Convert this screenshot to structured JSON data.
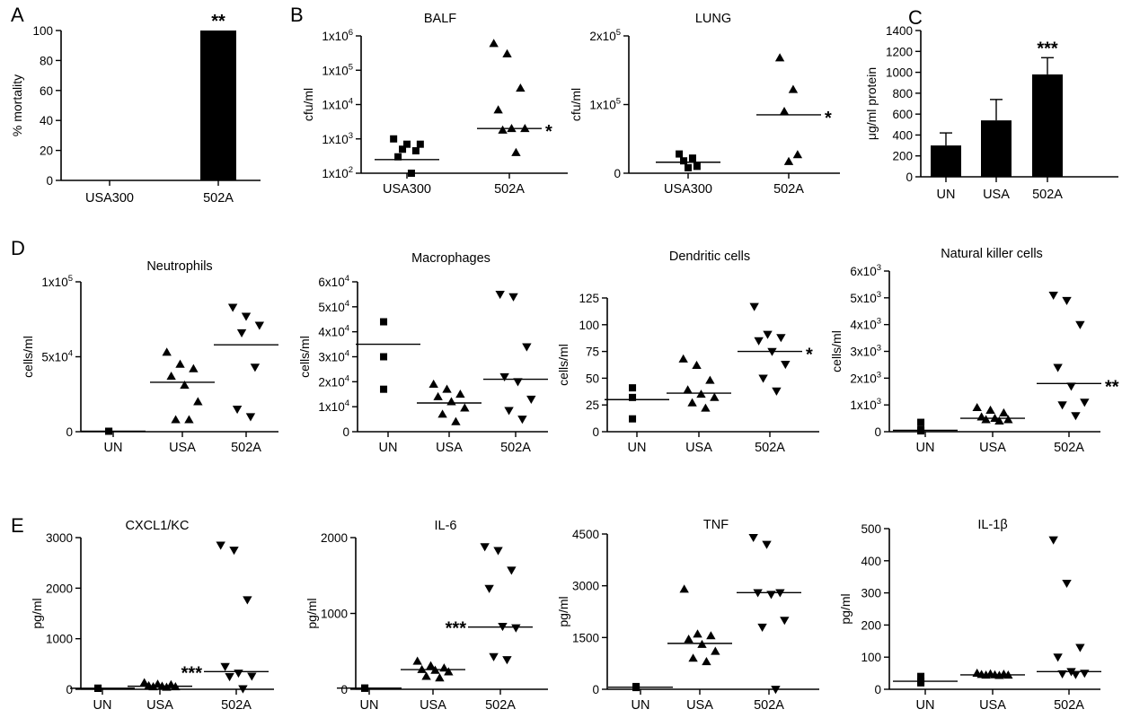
{
  "figure": {
    "panel_letters": [
      "A",
      "B",
      "C",
      "D",
      "E"
    ]
  },
  "chart_data": [
    {
      "id": "A",
      "panel_letter": "A",
      "type": "bar",
      "title": "",
      "ylabel": "% mortality",
      "ylim": [
        0,
        100
      ],
      "yticks": [
        0,
        20,
        40,
        60,
        80,
        100
      ],
      "categories": [
        "USA300",
        "502A"
      ],
      "values": [
        0,
        100
      ],
      "annotations": [
        {
          "category": "502A",
          "text": "**"
        }
      ]
    },
    {
      "id": "B1",
      "panel_letter": "B",
      "type": "scatter",
      "title": "BALF",
      "ylabel": "cfu/ml",
      "yscale": "log",
      "ylim": [
        100,
        1000000
      ],
      "yticks": [
        {
          "v": 100,
          "b": "1x10",
          "e": "2"
        },
        {
          "v": 1000,
          "b": "1x10",
          "e": "3"
        },
        {
          "v": 10000,
          "b": "1x10",
          "e": "4"
        },
        {
          "v": 100000,
          "b": "1x10",
          "e": "5"
        },
        {
          "v": 1000000,
          "b": "1x10",
          "e": "6"
        }
      ],
      "categories": [
        "USA300",
        "502A"
      ],
      "series": [
        {
          "category": "USA300",
          "marker": "square",
          "points": [
            1000,
            700,
            700,
            500,
            450,
            300,
            100
          ],
          "median": 250
        },
        {
          "category": "502A",
          "marker": "triangle-up",
          "points": [
            600000,
            300000,
            30000,
            7000,
            2000,
            2000,
            1800,
            400
          ],
          "median": 2000
        }
      ],
      "annotations": [
        {
          "category": "502A",
          "text": "*"
        }
      ]
    },
    {
      "id": "B2",
      "panel_letter": "",
      "type": "scatter",
      "title": "LUNG",
      "ylabel": "cfu/ml",
      "yscale": "linear",
      "ylim": [
        0,
        200000
      ],
      "yticks": [
        {
          "v": 0,
          "t": "0"
        },
        {
          "v": 100000,
          "b": "1x10",
          "e": "5"
        },
        {
          "v": 200000,
          "b": "2x10",
          "e": "5"
        }
      ],
      "categories": [
        "USA300",
        "502A"
      ],
      "series": [
        {
          "category": "USA300",
          "marker": "square",
          "points": [
            28000,
            22000,
            18000,
            10000,
            8000
          ],
          "median": 16000
        },
        {
          "category": "502A",
          "marker": "triangle-up",
          "points": [
            168000,
            122000,
            90000,
            27000,
            17000
          ],
          "median": 85000
        }
      ],
      "annotations": [
        {
          "category": "502A",
          "text": "*"
        }
      ]
    },
    {
      "id": "C",
      "panel_letter": "C",
      "type": "bar",
      "title": "",
      "ylabel": "μg/ml protein",
      "ylim": [
        0,
        1400
      ],
      "yticks": [
        0,
        200,
        400,
        600,
        800,
        1000,
        1200,
        1400
      ],
      "categories": [
        "UN",
        "USA",
        "502A"
      ],
      "values": [
        300,
        540,
        980
      ],
      "errors": [
        120,
        200,
        160
      ],
      "annotations": [
        {
          "category": "502A",
          "text": "***"
        }
      ]
    },
    {
      "id": "D1",
      "panel_letter": "D",
      "type": "scatter",
      "title": "Neutrophils",
      "ylabel": "cells/ml",
      "yscale": "linear",
      "ylim": [
        0,
        100000
      ],
      "yticks": [
        {
          "v": 0,
          "t": "0"
        },
        {
          "v": 50000,
          "b": "5x10",
          "e": "4"
        },
        {
          "v": 100000,
          "b": "1x10",
          "e": "5"
        }
      ],
      "categories": [
        "UN",
        "USA",
        "502A"
      ],
      "series": [
        {
          "category": "UN",
          "marker": "square",
          "points": [
            300,
            300,
            300
          ],
          "median": 300
        },
        {
          "category": "USA",
          "marker": "triangle-up",
          "points": [
            53000,
            45000,
            42000,
            37000,
            31000,
            20000,
            8000,
            8000
          ],
          "median": 33000
        },
        {
          "category": "502A",
          "marker": "triangle-down",
          "points": [
            83000,
            77000,
            71000,
            66000,
            43000,
            15000,
            10000
          ],
          "median": 58000
        }
      ],
      "annotations": []
    },
    {
      "id": "D2",
      "panel_letter": "",
      "type": "scatter",
      "title": "Macrophages",
      "ylabel": "cells/ml",
      "yscale": "linear",
      "ylim": [
        0,
        60000
      ],
      "yticks": [
        {
          "v": 0,
          "t": "0"
        },
        {
          "v": 10000,
          "b": "1x10",
          "e": "4"
        },
        {
          "v": 20000,
          "b": "2x10",
          "e": "4"
        },
        {
          "v": 30000,
          "b": "3x10",
          "e": "4"
        },
        {
          "v": 40000,
          "b": "4x10",
          "e": "4"
        },
        {
          "v": 50000,
          "b": "5x10",
          "e": "4"
        },
        {
          "v": 60000,
          "b": "6x10",
          "e": "4"
        }
      ],
      "categories": [
        "UN",
        "USA",
        "502A"
      ],
      "series": [
        {
          "category": "UN",
          "marker": "square",
          "points": [
            44000,
            30000,
            17000
          ],
          "median": 35000
        },
        {
          "category": "USA",
          "marker": "triangle-up",
          "points": [
            19000,
            17000,
            15000,
            14000,
            12000,
            9500,
            7000,
            4000
          ],
          "median": 11500
        },
        {
          "category": "502A",
          "marker": "triangle-down",
          "points": [
            55000,
            54000,
            34000,
            22000,
            20000,
            13000,
            8500,
            5000
          ],
          "median": 21000
        }
      ],
      "annotations": []
    },
    {
      "id": "D3",
      "panel_letter": "",
      "type": "scatter",
      "title": "Dendritic cells",
      "ylabel": "cells/ml",
      "yscale": "linear",
      "ylim": [
        0,
        125
      ],
      "yticks": [
        {
          "v": 0,
          "t": "0"
        },
        {
          "v": 25,
          "t": "25"
        },
        {
          "v": 50,
          "t": "50"
        },
        {
          "v": 75,
          "t": "75"
        },
        {
          "v": 100,
          "t": "100"
        },
        {
          "v": 125,
          "t": "125"
        }
      ],
      "categories": [
        "UN",
        "USA",
        "502A"
      ],
      "series": [
        {
          "category": "UN",
          "marker": "square",
          "points": [
            41,
            32,
            12
          ],
          "median": 30
        },
        {
          "category": "USA",
          "marker": "triangle-up",
          "points": [
            68,
            62,
            48,
            39,
            35,
            32,
            27,
            22
          ],
          "median": 36
        },
        {
          "category": "502A",
          "marker": "triangle-down",
          "points": [
            117,
            91,
            88,
            85,
            75,
            63,
            50,
            38
          ],
          "median": 75
        }
      ],
      "annotations": [
        {
          "category": "502A",
          "text": "*"
        }
      ]
    },
    {
      "id": "D4",
      "panel_letter": "",
      "type": "scatter",
      "title": "Natural killer cells",
      "ylabel": "cells/ml",
      "yscale": "linear",
      "ylim": [
        0,
        6000
      ],
      "yticks": [
        {
          "v": 0,
          "t": "0"
        },
        {
          "v": 1000,
          "b": "1x10",
          "e": "3"
        },
        {
          "v": 2000,
          "b": "2x10",
          "e": "3"
        },
        {
          "v": 3000,
          "b": "3x10",
          "e": "3"
        },
        {
          "v": 4000,
          "b": "4x10",
          "e": "3"
        },
        {
          "v": 5000,
          "b": "5x10",
          "e": "3"
        },
        {
          "v": 6000,
          "b": "6x10",
          "e": "3"
        }
      ],
      "categories": [
        "UN",
        "USA",
        "502A"
      ],
      "series": [
        {
          "category": "UN",
          "marker": "square",
          "points": [
            350,
            80,
            30
          ],
          "median": 50
        },
        {
          "category": "USA",
          "marker": "triangle-up",
          "points": [
            900,
            800,
            700,
            550,
            500,
            450,
            450,
            400
          ],
          "median": 500
        },
        {
          "category": "502A",
          "marker": "triangle-down",
          "points": [
            5100,
            4900,
            4000,
            2400,
            1700,
            1100,
            1000,
            600
          ],
          "median": 1800
        }
      ],
      "annotations": [
        {
          "category": "502A",
          "text": "**"
        }
      ]
    },
    {
      "id": "E1",
      "panel_letter": "E",
      "type": "scatter",
      "title": "CXCL1/KC",
      "ylabel": "pg/ml",
      "yscale": "linear",
      "ylim": [
        0,
        3000
      ],
      "yticks": [
        {
          "v": 0,
          "t": "0"
        },
        {
          "v": 1000,
          "t": "1000"
        },
        {
          "v": 2000,
          "t": "2000"
        },
        {
          "v": 3000,
          "t": "3000"
        }
      ],
      "categories": [
        "UN",
        "USA",
        "502A"
      ],
      "series": [
        {
          "category": "UN",
          "marker": "square",
          "points": [
            20,
            20,
            20
          ],
          "median": 20
        },
        {
          "category": "USA",
          "marker": "triangle-up",
          "points": [
            130,
            100,
            90,
            70,
            60,
            50,
            50,
            40
          ],
          "median": 60
        },
        {
          "category": "502A",
          "marker": "triangle-down",
          "points": [
            2850,
            2750,
            1770,
            450,
            320,
            260,
            250,
            10
          ],
          "median": 350
        }
      ],
      "annotations": [
        {
          "category": "502A",
          "text": "***"
        }
      ]
    },
    {
      "id": "E2",
      "panel_letter": "",
      "type": "scatter",
      "title": "IL-6",
      "ylabel": "pg/ml",
      "yscale": "linear",
      "ylim": [
        0,
        2000
      ],
      "yticks": [
        {
          "v": 0,
          "t": "0"
        },
        {
          "v": 1000,
          "t": "1000"
        },
        {
          "v": 2000,
          "t": "2000"
        }
      ],
      "categories": [
        "UN",
        "USA",
        "502A"
      ],
      "series": [
        {
          "category": "UN",
          "marker": "square",
          "points": [
            15,
            15,
            15
          ],
          "median": 15
        },
        {
          "category": "USA",
          "marker": "triangle-up",
          "points": [
            370,
            310,
            280,
            260,
            250,
            230,
            170,
            150
          ],
          "median": 260
        },
        {
          "category": "502A",
          "marker": "triangle-down",
          "points": [
            1880,
            1830,
            1570,
            1330,
            830,
            810,
            430,
            390
          ],
          "median": 820
        }
      ],
      "annotations": [
        {
          "category": "502A",
          "text": "***"
        }
      ]
    },
    {
      "id": "E3",
      "panel_letter": "",
      "type": "scatter",
      "title": "TNF",
      "ylabel": "pg/ml",
      "yscale": "linear",
      "ylim": [
        0,
        4500
      ],
      "yticks": [
        {
          "v": 0,
          "t": "0"
        },
        {
          "v": 1500,
          "t": "1500"
        },
        {
          "v": 3000,
          "t": "3000"
        },
        {
          "v": 4500,
          "t": "4500"
        }
      ],
      "categories": [
        "UN",
        "USA",
        "502A"
      ],
      "series": [
        {
          "category": "UN",
          "marker": "square",
          "points": [
            80,
            60,
            50
          ],
          "median": 60
        },
        {
          "category": "USA",
          "marker": "triangle-up",
          "points": [
            2900,
            1600,
            1550,
            1450,
            1300,
            1100,
            900,
            800
          ],
          "median": 1330
        },
        {
          "category": "502A",
          "marker": "triangle-down",
          "points": [
            4400,
            4200,
            2800,
            2800,
            2750,
            2000,
            1800,
            0
          ],
          "median": 2800
        }
      ],
      "annotations": []
    },
    {
      "id": "E4",
      "panel_letter": "",
      "type": "scatter",
      "title": "IL-1β",
      "ylabel": "pg/ml",
      "yscale": "linear",
      "ylim": [
        0,
        500
      ],
      "yticks": [
        {
          "v": 0,
          "t": "0"
        },
        {
          "v": 100,
          "t": "100"
        },
        {
          "v": 200,
          "t": "200"
        },
        {
          "v": 300,
          "t": "300"
        },
        {
          "v": 400,
          "t": "400"
        },
        {
          "v": 500,
          "t": "500"
        }
      ],
      "categories": [
        "UN",
        "USA",
        "502A"
      ],
      "series": [
        {
          "category": "UN",
          "marker": "square",
          "points": [
            40,
            25,
            20
          ],
          "median": 25
        },
        {
          "category": "USA",
          "marker": "triangle-up",
          "points": [
            50,
            48,
            47,
            46,
            45,
            44,
            44,
            43
          ],
          "median": 45
        },
        {
          "category": "502A",
          "marker": "triangle-down",
          "points": [
            465,
            330,
            130,
            100,
            55,
            50,
            48,
            46
          ],
          "median": 55
        }
      ],
      "annotations": []
    }
  ]
}
